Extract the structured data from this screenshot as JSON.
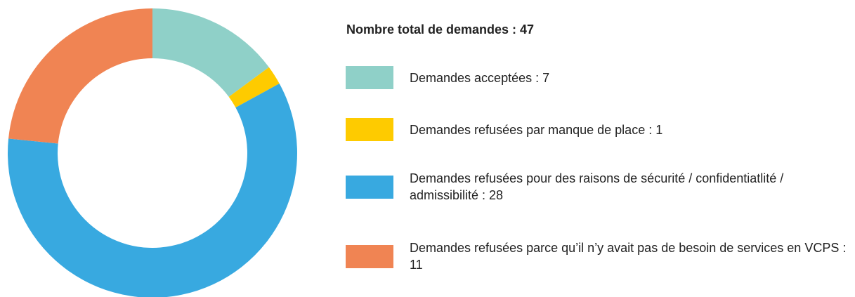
{
  "chart_data": {
    "type": "donut",
    "title": "Nombre total de demandes : 47",
    "series": [
      {
        "name": "Demandes acceptées : 7",
        "color": "#8fd0c8",
        "values": [
          7
        ]
      },
      {
        "name": "Demandes refusées par manque de place : 1",
        "color": "#fecb00",
        "values": [
          1
        ]
      },
      {
        "name": "Demandes refusées pour des raisons de sécurité / confidentiatlité / admissibilité : 28",
        "color": "#38a9e0",
        "values": [
          28
        ]
      },
      {
        "name": "Demandes refusées parce qu’il n’y avait pas de besoin de services en VCPS : 11",
        "color": "#f08453",
        "values": [
          11
        ]
      }
    ]
  }
}
